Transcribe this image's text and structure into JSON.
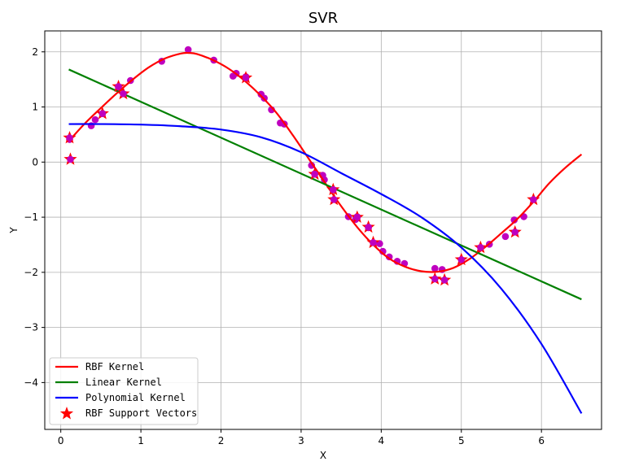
{
  "chart_data": {
    "type": "scatter",
    "title": "SVR",
    "xlabel": "X",
    "ylabel": "Y",
    "xlim": [
      -0.2,
      6.75
    ],
    "ylim": [
      -4.85,
      2.38
    ],
    "xticks": [
      0,
      1,
      2,
      3,
      4,
      5,
      6
    ],
    "yticks": [
      -4,
      -3,
      -2,
      -1,
      0,
      1,
      2
    ],
    "grid": true,
    "legend_position": "lower-left",
    "data_points": {
      "color": "#bf00bf",
      "x": [
        0.11,
        0.38,
        0.43,
        0.52,
        0.72,
        0.87,
        1.26,
        1.59,
        1.91,
        2.15,
        2.19,
        2.31,
        2.5,
        2.54,
        2.63,
        2.74,
        2.79,
        3.13,
        3.17,
        3.27,
        3.29,
        3.4,
        3.59,
        3.68,
        3.7,
        3.84,
        3.98,
        4.02,
        4.1,
        4.2,
        4.29,
        4.67,
        4.76,
        5.35,
        5.55,
        5.66,
        5.78
      ],
      "y": [
        0.41,
        0.66,
        0.77,
        0.88,
        1.35,
        1.48,
        1.83,
        2.04,
        1.85,
        1.56,
        1.61,
        1.55,
        1.23,
        1.16,
        0.95,
        0.71,
        0.69,
        -0.06,
        -0.21,
        -0.24,
        -0.32,
        -0.5,
        -0.99,
        -1.04,
        -0.99,
        -1.19,
        -1.48,
        -1.62,
        -1.72,
        -1.8,
        -1.84,
        -1.93,
        -1.95,
        -1.49,
        -1.35,
        -1.05,
        -0.99
      ]
    },
    "support_vectors": {
      "name": "RBF Support Vectors",
      "color": "#ff0000",
      "x": [
        0.11,
        0.12,
        0.52,
        0.72,
        0.78,
        2.31,
        3.17,
        3.4,
        3.41,
        3.7,
        3.84,
        3.9,
        4.67,
        4.79,
        5.0,
        5.24,
        5.67,
        5.9
      ],
      "y": [
        0.44,
        0.05,
        0.88,
        1.37,
        1.24,
        1.53,
        -0.22,
        -0.5,
        -0.68,
        -1.0,
        -1.18,
        -1.46,
        -2.12,
        -2.14,
        -1.77,
        -1.55,
        -1.27,
        -0.68
      ]
    },
    "series": [
      {
        "name": "RBF Kernel",
        "color": "#ff0000",
        "x": [
          0.1,
          0.3,
          0.5,
          0.7,
          0.9,
          1.1,
          1.3,
          1.5,
          1.6,
          1.7,
          1.9,
          2.1,
          2.3,
          2.5,
          2.7,
          2.9,
          3.1,
          3.3,
          3.5,
          3.7,
          3.9,
          4.1,
          4.3,
          4.5,
          4.7,
          4.9,
          5.1,
          5.3,
          5.5,
          5.7,
          5.9,
          6.1,
          6.3,
          6.5
        ],
        "values": [
          0.38,
          0.7,
          0.98,
          1.25,
          1.5,
          1.72,
          1.88,
          1.97,
          1.98,
          1.96,
          1.85,
          1.69,
          1.47,
          1.2,
          0.88,
          0.48,
          0.05,
          -0.38,
          -0.8,
          -1.18,
          -1.5,
          -1.75,
          -1.9,
          -1.98,
          -1.99,
          -1.92,
          -1.76,
          -1.54,
          -1.29,
          -1.03,
          -0.72,
          -0.38,
          -0.1,
          0.14
        ]
      },
      {
        "name": "Linear Kernel",
        "color": "#008000",
        "x": [
          0.1,
          6.5
        ],
        "values": [
          1.68,
          -2.49
        ]
      },
      {
        "name": "Polynomial Kernel",
        "color": "#0000ff",
        "x": [
          0.1,
          0.5,
          1.0,
          1.5,
          2.0,
          2.5,
          3.0,
          3.5,
          4.0,
          4.5,
          5.0,
          5.5,
          6.0,
          6.5
        ],
        "values": [
          0.69,
          0.69,
          0.68,
          0.65,
          0.59,
          0.45,
          0.18,
          -0.2,
          -0.58,
          -1.0,
          -1.55,
          -2.3,
          -3.3,
          -4.56
        ]
      }
    ]
  }
}
